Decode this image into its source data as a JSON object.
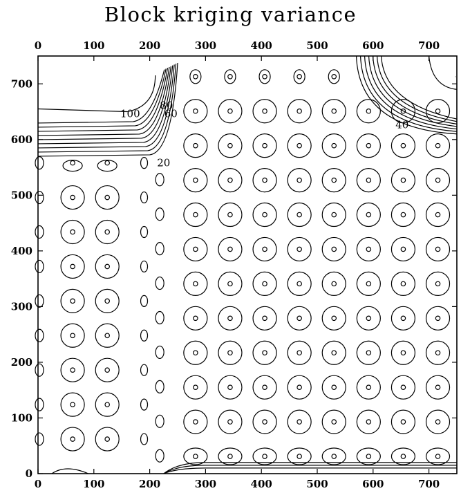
{
  "chart_data": {
    "type": "contour",
    "title": "Block kriging variance",
    "xlabel": "",
    "ylabel": "",
    "xlim": [
      0,
      750
    ],
    "ylim": [
      0,
      750
    ],
    "x_ticks": [
      0,
      100,
      200,
      300,
      400,
      500,
      600,
      700
    ],
    "y_ticks": [
      0,
      100,
      200,
      300,
      400,
      500,
      600,
      700
    ],
    "x_ticks_top": [
      0,
      100,
      200,
      300,
      400,
      500,
      600,
      700
    ],
    "grid": false,
    "contour_labels": [
      {
        "text": "100",
        "x": 165,
        "y": 640
      },
      {
        "text": "80",
        "x": 230,
        "y": 655
      },
      {
        "text": "60",
        "x": 238,
        "y": 640
      },
      {
        "text": "40",
        "x": 652,
        "y": 620
      },
      {
        "text": "20",
        "x": 225,
        "y": 552
      }
    ],
    "sample_grid_left": {
      "x": [
        62,
        124
      ],
      "y": [
        62,
        124,
        186,
        248,
        310,
        372,
        434,
        496,
        558
      ]
    },
    "sample_grid_right": {
      "x": [
        282,
        344,
        406,
        468,
        530,
        592,
        654,
        716
      ],
      "y": [
        31,
        93,
        155,
        217,
        279,
        341,
        403,
        465,
        527,
        589,
        651,
        713
      ]
    }
  }
}
